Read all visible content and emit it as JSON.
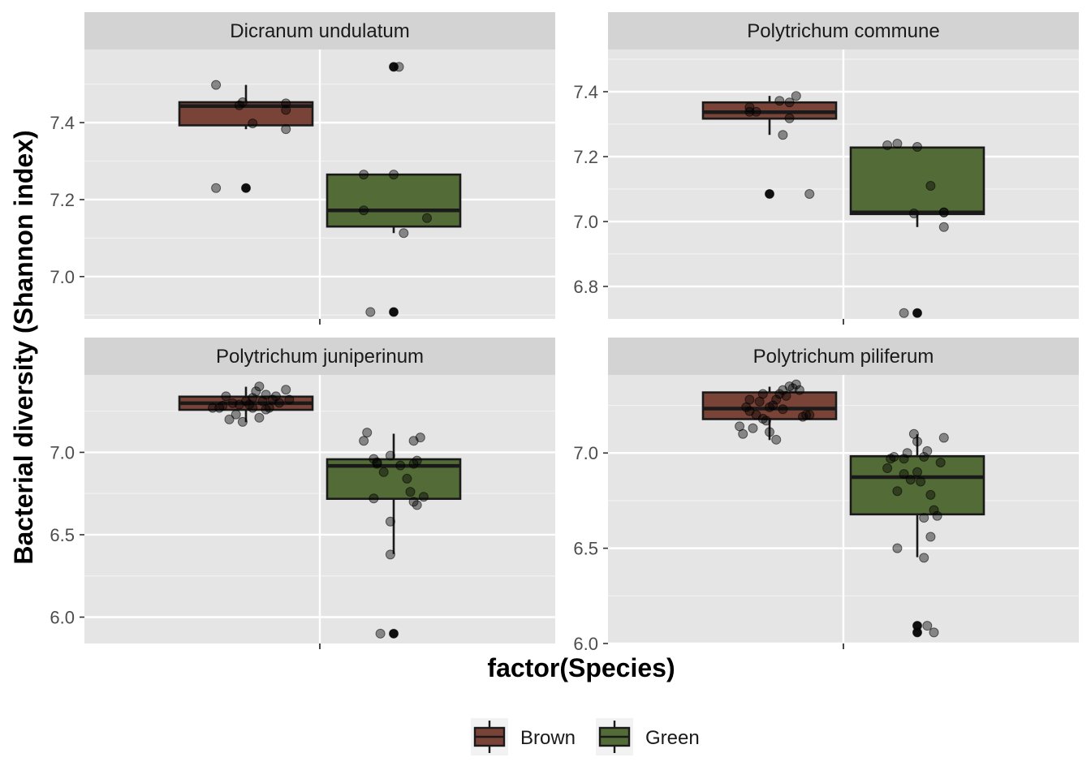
{
  "chart_data": {
    "type": "box",
    "xlabel": "factor(Species)",
    "ylabel": "Bacterial diversity (Shannon index)",
    "categories": [
      "Brown",
      "Green"
    ],
    "colors": {
      "Brown": "#7a4337",
      "Green": "#536b36",
      "panel_bg": "#e5e5e5",
      "strip_bg": "#d3d3d3"
    },
    "grid": true,
    "legend_position": "bottom",
    "legend": [
      {
        "label": "Brown",
        "color": "#7a4337"
      },
      {
        "label": "Green",
        "color": "#536b36"
      }
    ],
    "facets": [
      {
        "title": "Dicranum undulatum",
        "ylim": [
          6.89,
          7.59
        ],
        "yticks": [
          7.0,
          7.2,
          7.4
        ],
        "boxes": [
          {
            "group": "Brown",
            "q1": 7.393,
            "median": 7.443,
            "q3": 7.453,
            "whisker_low": 7.383,
            "whisker_high": 7.498,
            "outliers": [
              7.23
            ],
            "points": [
              [
                -0.45,
                7.498
              ],
              [
                -0.05,
                7.453
              ],
              [
                -0.1,
                7.445
              ],
              [
                0.1,
                7.398
              ],
              [
                0.6,
                7.45
              ],
              [
                0.6,
                7.433
              ],
              [
                0.6,
                7.383
              ],
              [
                -0.45,
                7.23
              ],
              [
                0.0,
                7.23
              ]
            ]
          },
          {
            "group": "Green",
            "q1": 7.13,
            "median": 7.172,
            "q3": 7.265,
            "whisker_low": 7.113,
            "whisker_high": 7.265,
            "outliers": [
              7.545,
              6.908
            ],
            "points": [
              [
                -0.45,
                7.265
              ],
              [
                0.0,
                7.265
              ],
              [
                -0.45,
                7.172
              ],
              [
                0.5,
                7.152
              ],
              [
                0.15,
                7.113
              ],
              [
                0.0,
                7.545
              ],
              [
                0.08,
                7.545
              ],
              [
                -0.35,
                6.908
              ],
              [
                0.0,
                6.908
              ]
            ]
          }
        ]
      },
      {
        "title": "Polytrichum commune",
        "ylim": [
          6.7,
          7.53
        ],
        "yticks": [
          6.8,
          7.0,
          7.2,
          7.4
        ],
        "boxes": [
          {
            "group": "Brown",
            "q1": 7.317,
            "median": 7.337,
            "q3": 7.367,
            "whisker_low": 7.267,
            "whisker_high": 7.387,
            "outliers": [
              7.085
            ],
            "points": [
              [
                -0.3,
                7.352
              ],
              [
                -0.3,
                7.338
              ],
              [
                -0.2,
                7.338
              ],
              [
                0.15,
                7.372
              ],
              [
                0.3,
                7.367
              ],
              [
                0.4,
                7.387
              ],
              [
                0.3,
                7.318
              ],
              [
                0.2,
                7.267
              ],
              [
                0.0,
                7.085
              ],
              [
                0.6,
                7.085
              ]
            ]
          },
          {
            "group": "Green",
            "q1": 7.023,
            "median": 7.028,
            "q3": 7.228,
            "whisker_low": 6.983,
            "whisker_high": 7.228,
            "outliers": [
              6.718
            ],
            "points": [
              [
                -0.45,
                7.235
              ],
              [
                -0.3,
                7.24
              ],
              [
                0.0,
                7.23
              ],
              [
                0.2,
                7.11
              ],
              [
                -0.05,
                7.025
              ],
              [
                0.4,
                7.028
              ],
              [
                0.4,
                7.028
              ],
              [
                0.4,
                6.983
              ],
              [
                -0.2,
                6.718
              ],
              [
                0.0,
                6.718
              ]
            ]
          }
        ]
      },
      {
        "title": "Polytrichum juniperinum",
        "ylim": [
          5.84,
          7.47
        ],
        "yticks": [
          6.0,
          6.5,
          7.0
        ],
        "boxes": [
          {
            "group": "Brown",
            "q1": 7.258,
            "median": 7.298,
            "q3": 7.338,
            "whisker_low": 7.183,
            "whisker_high": 7.398,
            "points": [
              [
                -0.5,
                7.27
              ],
              [
                -0.35,
                7.283
              ],
              [
                -0.3,
                7.34
              ],
              [
                -0.2,
                7.298
              ],
              [
                -0.1,
                7.29
              ],
              [
                0.0,
                7.31
              ],
              [
                0.1,
                7.33
              ],
              [
                0.15,
                7.37
              ],
              [
                0.2,
                7.4
              ],
              [
                0.3,
                7.35
              ],
              [
                0.4,
                7.32
              ],
              [
                0.5,
                7.3
              ],
              [
                0.6,
                7.38
              ],
              [
                0.65,
                7.32
              ],
              [
                -0.25,
                7.2
              ],
              [
                -0.15,
                7.23
              ],
              [
                -0.05,
                7.185
              ],
              [
                0.2,
                7.21
              ],
              [
                0.3,
                7.26
              ],
              [
                0.1,
                7.27
              ],
              [
                0.45,
                7.34
              ],
              [
                -0.4,
                7.27
              ],
              [
                0.05,
                7.29
              ],
              [
                0.25,
                7.31
              ],
              [
                0.35,
                7.27
              ]
            ]
          },
          {
            "group": "Green",
            "q1": 6.718,
            "median": 6.918,
            "q3": 6.958,
            "whisker_low": 6.383,
            "whisker_high": 7.113,
            "outliers": [
              5.9
            ],
            "points": [
              [
                -0.45,
                7.07
              ],
              [
                -0.4,
                7.12
              ],
              [
                -0.3,
                6.96
              ],
              [
                -0.25,
                6.93
              ],
              [
                -0.15,
                6.88
              ],
              [
                -0.05,
                6.98
              ],
              [
                0.1,
                6.92
              ],
              [
                0.2,
                6.84
              ],
              [
                0.25,
                6.76
              ],
              [
                0.3,
                6.93
              ],
              [
                0.35,
                6.95
              ],
              [
                0.3,
                7.07
              ],
              [
                0.4,
                7.09
              ],
              [
                0.45,
                6.73
              ],
              [
                0.3,
                6.7
              ],
              [
                0.35,
                6.68
              ],
              [
                -0.25,
                6.94
              ],
              [
                -0.3,
                6.72
              ],
              [
                -0.05,
                6.58
              ],
              [
                -0.05,
                6.38
              ],
              [
                -0.2,
                5.9
              ],
              [
                0.0,
                5.9
              ]
            ]
          }
        ]
      },
      {
        "title": "Polytrichum piliferum",
        "ylim": [
          6.0,
          7.41
        ],
        "yticks": [
          6.0,
          6.5,
          7.0
        ],
        "boxes": [
          {
            "group": "Brown",
            "q1": 7.178,
            "median": 7.233,
            "q3": 7.318,
            "whisker_low": 7.068,
            "whisker_high": 7.348,
            "points": [
              [
                -0.45,
                7.14
              ],
              [
                -0.4,
                7.1
              ],
              [
                -0.35,
                7.24
              ],
              [
                -0.3,
                7.22
              ],
              [
                -0.25,
                7.13
              ],
              [
                -0.2,
                7.2
              ],
              [
                -0.15,
                7.27
              ],
              [
                -0.1,
                7.31
              ],
              [
                -0.05,
                7.17
              ],
              [
                0.0,
                7.24
              ],
              [
                0.05,
                7.25
              ],
              [
                0.1,
                7.28
              ],
              [
                0.15,
                7.31
              ],
              [
                0.2,
                7.33
              ],
              [
                0.25,
                7.3
              ],
              [
                0.3,
                7.35
              ],
              [
                0.35,
                7.34
              ],
              [
                0.4,
                7.36
              ],
              [
                0.45,
                7.33
              ],
              [
                0.5,
                7.19
              ],
              [
                0.55,
                7.2
              ],
              [
                0.6,
                7.2
              ],
              [
                0.0,
                7.11
              ],
              [
                0.1,
                7.07
              ],
              [
                0.2,
                7.23
              ],
              [
                -0.1,
                7.18
              ],
              [
                -0.3,
                7.28
              ]
            ]
          },
          {
            "group": "Green",
            "q1": 6.678,
            "median": 6.873,
            "q3": 6.983,
            "whisker_low": 6.453,
            "whisker_high": 7.098,
            "outliers": [
              6.093,
              6.058
            ],
            "points": [
              [
                -0.45,
                6.92
              ],
              [
                -0.4,
                6.97
              ],
              [
                -0.35,
                6.98
              ],
              [
                -0.3,
                6.8
              ],
              [
                -0.2,
                6.89
              ],
              [
                -0.15,
                7.0
              ],
              [
                -0.1,
                6.86
              ],
              [
                0.0,
                6.9
              ],
              [
                0.05,
                6.85
              ],
              [
                0.1,
                6.98
              ],
              [
                0.15,
                7.01
              ],
              [
                0.2,
                6.78
              ],
              [
                0.25,
                6.7
              ],
              [
                0.3,
                6.67
              ],
              [
                0.35,
                6.95
              ],
              [
                0.4,
                7.08
              ],
              [
                -0.05,
                7.1
              ],
              [
                0.1,
                6.66
              ],
              [
                0.2,
                6.56
              ],
              [
                -0.3,
                6.5
              ],
              [
                0.1,
                6.45
              ],
              [
                0.0,
                7.06
              ],
              [
                -0.2,
                6.97
              ],
              [
                0.0,
                6.093
              ],
              [
                0.0,
                6.058
              ],
              [
                0.15,
                6.093
              ],
              [
                0.25,
                6.058
              ]
            ]
          }
        ]
      }
    ]
  }
}
